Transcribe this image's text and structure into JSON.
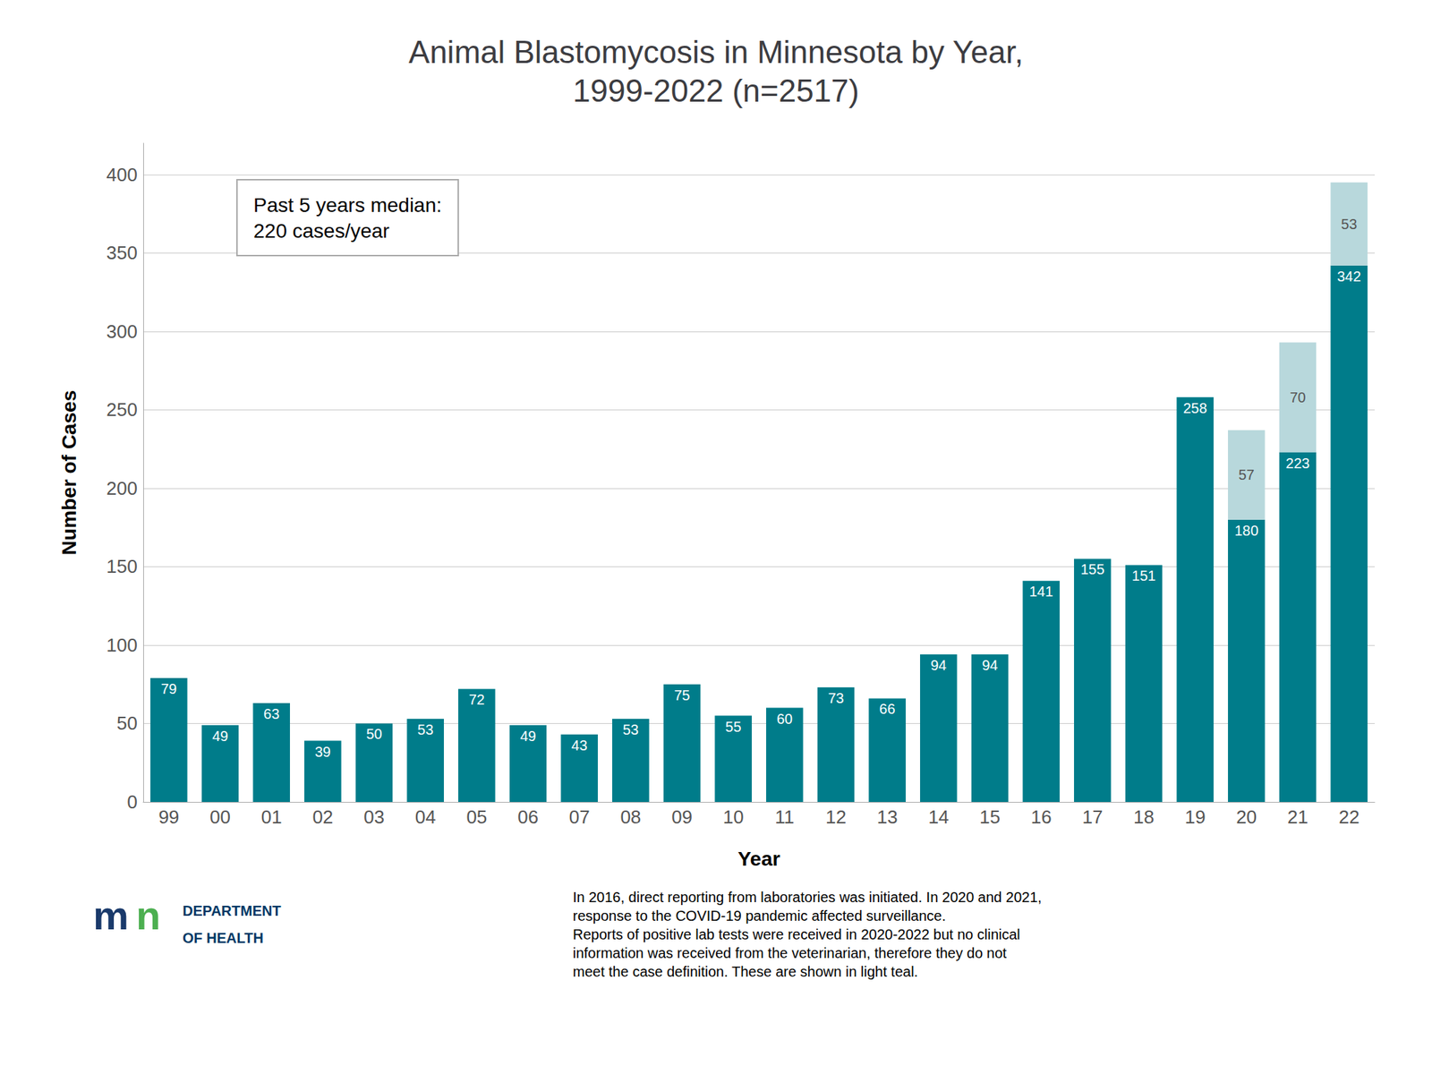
{
  "chart_data": {
    "type": "bar",
    "title": "Animal Blastomycosis in Minnesota by Year,\n1999-2022 (n=2517)",
    "x_label": "Year",
    "y_label": "Number of Cases",
    "categories": [
      "99",
      "00",
      "01",
      "02",
      "03",
      "04",
      "05",
      "06",
      "07",
      "08",
      "09",
      "10",
      "11",
      "12",
      "13",
      "14",
      "15",
      "16",
      "17",
      "18",
      "19",
      "20",
      "21",
      "22"
    ],
    "series": [
      {
        "color": "#007C8A",
        "values": [
          79,
          49,
          63,
          39,
          50,
          53,
          72,
          49,
          43,
          53,
          75,
          55,
          60,
          73,
          66,
          94,
          94,
          141,
          155,
          151,
          258,
          180,
          223,
          342
        ]
      },
      {
        "color": "#B8D8DC",
        "values": [
          0,
          0,
          0,
          0,
          0,
          0,
          0,
          0,
          0,
          0,
          0,
          0,
          0,
          0,
          0,
          0,
          0,
          0,
          0,
          0,
          0,
          57,
          70,
          53
        ]
      }
    ],
    "stacked": true,
    "data_labels": true,
    "grid": true,
    "ylim": [
      0,
      420
    ],
    "yticks": [
      0,
      50,
      100,
      150,
      200,
      250,
      300,
      350,
      400
    ],
    "annotations": [
      "Past 5 years median:\n220 cases/year",
      "In 2016, direct reporting from laboratories was initiated. In 2020 and 2021,\nresponse to the COVID-19 pandemic affected surveillance.\nReports of positive lab tests were received in 2020-2022 but no clinical\ninformation was received from the veterinarian, therefore they do not\nmeet the case definition. These are shown in light teal.",
      "DEPARTMENT",
      "OF HEALTH",
      "m",
      "n"
    ]
  }
}
